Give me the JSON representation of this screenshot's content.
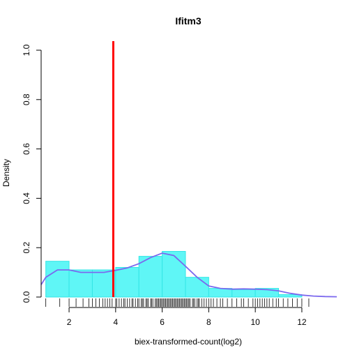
{
  "chart_data": {
    "type": "histogram",
    "title": "Ifitm3",
    "xlabel": "biex-transformed-count(log2)",
    "ylabel": "Density",
    "xlim": [
      0.8,
      13.5
    ],
    "ylim": [
      0,
      1.0
    ],
    "x_ticks": [
      2,
      4,
      6,
      8,
      10,
      12
    ],
    "y_ticks": [
      0.0,
      0.2,
      0.4,
      0.6,
      0.8,
      1.0
    ],
    "x_tick_labels": [
      "2",
      "4",
      "6",
      "8",
      "10",
      "12"
    ],
    "y_tick_labels": [
      "0.0",
      "0.2",
      "0.4",
      "0.6",
      "0.8",
      "1.0"
    ],
    "bins": [
      {
        "x0": 1,
        "x1": 2,
        "density": 0.145
      },
      {
        "x0": 2,
        "x1": 3,
        "density": 0.11
      },
      {
        "x0": 3,
        "x1": 4,
        "density": 0.11
      },
      {
        "x0": 4,
        "x1": 5,
        "density": 0.12
      },
      {
        "x0": 5,
        "x1": 6,
        "density": 0.165
      },
      {
        "x0": 6,
        "x1": 7,
        "density": 0.185
      },
      {
        "x0": 7,
        "x1": 8,
        "density": 0.08
      },
      {
        "x0": 8,
        "x1": 9,
        "density": 0.035
      },
      {
        "x0": 9,
        "x1": 10,
        "density": 0.03
      },
      {
        "x0": 10,
        "x1": 11,
        "density": 0.035
      },
      {
        "x0": 11,
        "x1": 12,
        "density": 0.01
      }
    ],
    "density_curve": {
      "x": [
        0.8,
        1.0,
        1.5,
        2.0,
        2.5,
        3.0,
        3.5,
        4.0,
        4.5,
        5.0,
        5.5,
        6.0,
        6.5,
        7.0,
        7.5,
        8.0,
        8.5,
        9.0,
        9.5,
        10.0,
        10.5,
        11.0,
        11.5,
        12.0,
        12.5,
        13.0,
        13.5
      ],
      "y": [
        0.05,
        0.08,
        0.11,
        0.11,
        0.1,
        0.1,
        0.1,
        0.108,
        0.118,
        0.135,
        0.16,
        0.178,
        0.168,
        0.125,
        0.08,
        0.045,
        0.035,
        0.032,
        0.033,
        0.032,
        0.03,
        0.025,
        0.015,
        0.008,
        0.004,
        0.002,
        0.001
      ]
    },
    "vline_x": 3.9,
    "rug_x": [
      1.0,
      1.6,
      2.0,
      2.3,
      2.6,
      2.85,
      3.0,
      3.15,
      3.3,
      3.45,
      3.55,
      3.65,
      3.75,
      3.85,
      4.0,
      4.05,
      4.15,
      4.25,
      4.35,
      4.4,
      4.5,
      4.6,
      4.7,
      4.75,
      4.85,
      4.95,
      5.0,
      5.1,
      5.15,
      5.2,
      5.3,
      5.35,
      5.4,
      5.5,
      5.55,
      5.6,
      5.7,
      5.75,
      5.8,
      5.85,
      5.9,
      5.95,
      6.0,
      6.05,
      6.1,
      6.15,
      6.2,
      6.25,
      6.3,
      6.35,
      6.4,
      6.45,
      6.5,
      6.55,
      6.6,
      6.65,
      6.7,
      6.75,
      6.8,
      6.85,
      6.9,
      6.95,
      7.0,
      7.05,
      7.1,
      7.15,
      7.2,
      7.3,
      7.35,
      7.4,
      7.5,
      7.55,
      7.6,
      7.7,
      7.8,
      7.9,
      8.0,
      8.1,
      8.2,
      8.35,
      8.5,
      8.6,
      8.8,
      9.0,
      9.2,
      9.4,
      9.5,
      9.7,
      9.9,
      10.0,
      10.1,
      10.2,
      10.3,
      10.4,
      10.5,
      10.6,
      10.75,
      10.9,
      11.0,
      11.2,
      11.4,
      11.6,
      11.8,
      12.0,
      12.3
    ],
    "colors": {
      "bars": "#5ff6f6",
      "bar_edge": "#33e6e6",
      "curve": "#7b68ee",
      "vline": "#ff0000",
      "rug": "#000000"
    }
  }
}
